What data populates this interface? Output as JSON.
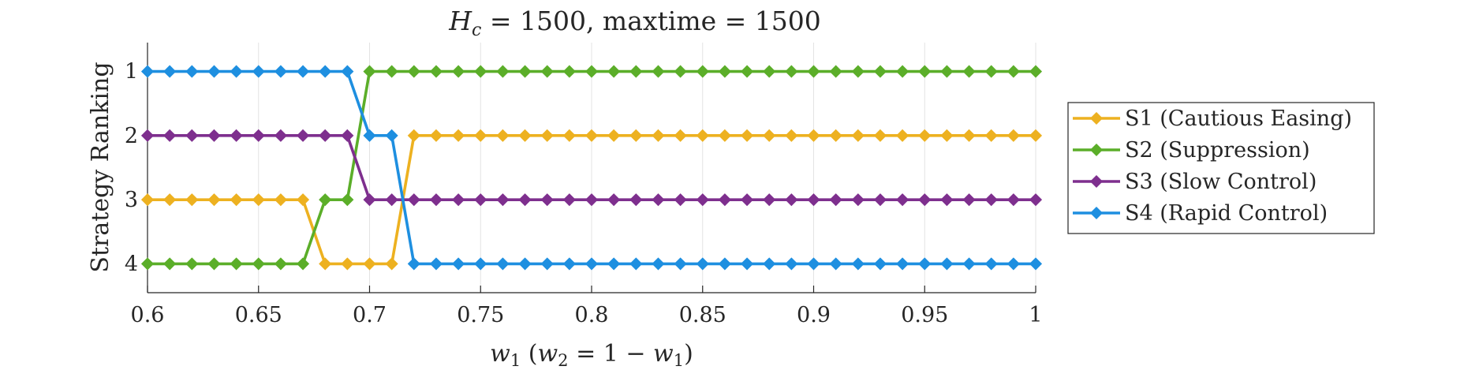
{
  "chart_data": {
    "type": "line",
    "title": {
      "var": "H",
      "sub": "c",
      "eq1": " = 1500, maxtime = 1500"
    },
    "xlabel": {
      "w1": "w",
      "w1sub": "1",
      "open": " (",
      "w2": "w",
      "w2sub": "2",
      "eq": " = 1 − ",
      "w3": "w",
      "w3sub": "1",
      "close": ")"
    },
    "ylabel": "Strategy Ranking",
    "xlim": [
      0.6,
      1.0
    ],
    "ylim": [
      0.55,
      4.45
    ],
    "y_reversed": true,
    "x_ticks": [
      0.6,
      0.65,
      0.7,
      0.75,
      0.8,
      0.85,
      0.9,
      0.95,
      1.0
    ],
    "x_tick_labels": [
      "0.6",
      "0.65",
      "0.7",
      "0.75",
      "0.8",
      "0.85",
      "0.9",
      "0.95",
      "1"
    ],
    "y_ticks": [
      1,
      2,
      3,
      4
    ],
    "y_tick_labels": [
      "1",
      "2",
      "3",
      "4"
    ],
    "x_grid": true,
    "y_grid": false,
    "legend_position": "outside-right",
    "x_start": 0.6,
    "x_step": 0.01,
    "series": [
      {
        "name": "S1 (Cautious Easing)",
        "color": "#EDB120",
        "values": [
          3,
          3,
          3,
          3,
          3,
          3,
          3,
          3,
          4,
          4,
          4,
          4,
          2,
          2,
          2,
          2,
          2,
          2,
          2,
          2,
          2,
          2,
          2,
          2,
          2,
          2,
          2,
          2,
          2,
          2,
          2,
          2,
          2,
          2,
          2,
          2,
          2,
          2,
          2,
          2,
          2
        ]
      },
      {
        "name": "S2 (Suppression)",
        "color": "#5BAE29",
        "values": [
          4,
          4,
          4,
          4,
          4,
          4,
          4,
          4,
          3,
          3,
          1,
          1,
          1,
          1,
          1,
          1,
          1,
          1,
          1,
          1,
          1,
          1,
          1,
          1,
          1,
          1,
          1,
          1,
          1,
          1,
          1,
          1,
          1,
          1,
          1,
          1,
          1,
          1,
          1,
          1,
          1
        ]
      },
      {
        "name": "S3 (Slow Control)",
        "color": "#7E2F8E",
        "values": [
          2,
          2,
          2,
          2,
          2,
          2,
          2,
          2,
          2,
          2,
          3,
          3,
          3,
          3,
          3,
          3,
          3,
          3,
          3,
          3,
          3,
          3,
          3,
          3,
          3,
          3,
          3,
          3,
          3,
          3,
          3,
          3,
          3,
          3,
          3,
          3,
          3,
          3,
          3,
          3,
          3
        ]
      },
      {
        "name": "S4 (Rapid Control)",
        "color": "#1E8FE0",
        "values": [
          1,
          1,
          1,
          1,
          1,
          1,
          1,
          1,
          1,
          1,
          2,
          2,
          4,
          4,
          4,
          4,
          4,
          4,
          4,
          4,
          4,
          4,
          4,
          4,
          4,
          4,
          4,
          4,
          4,
          4,
          4,
          4,
          4,
          4,
          4,
          4,
          4,
          4,
          4,
          4,
          4
        ]
      }
    ]
  }
}
